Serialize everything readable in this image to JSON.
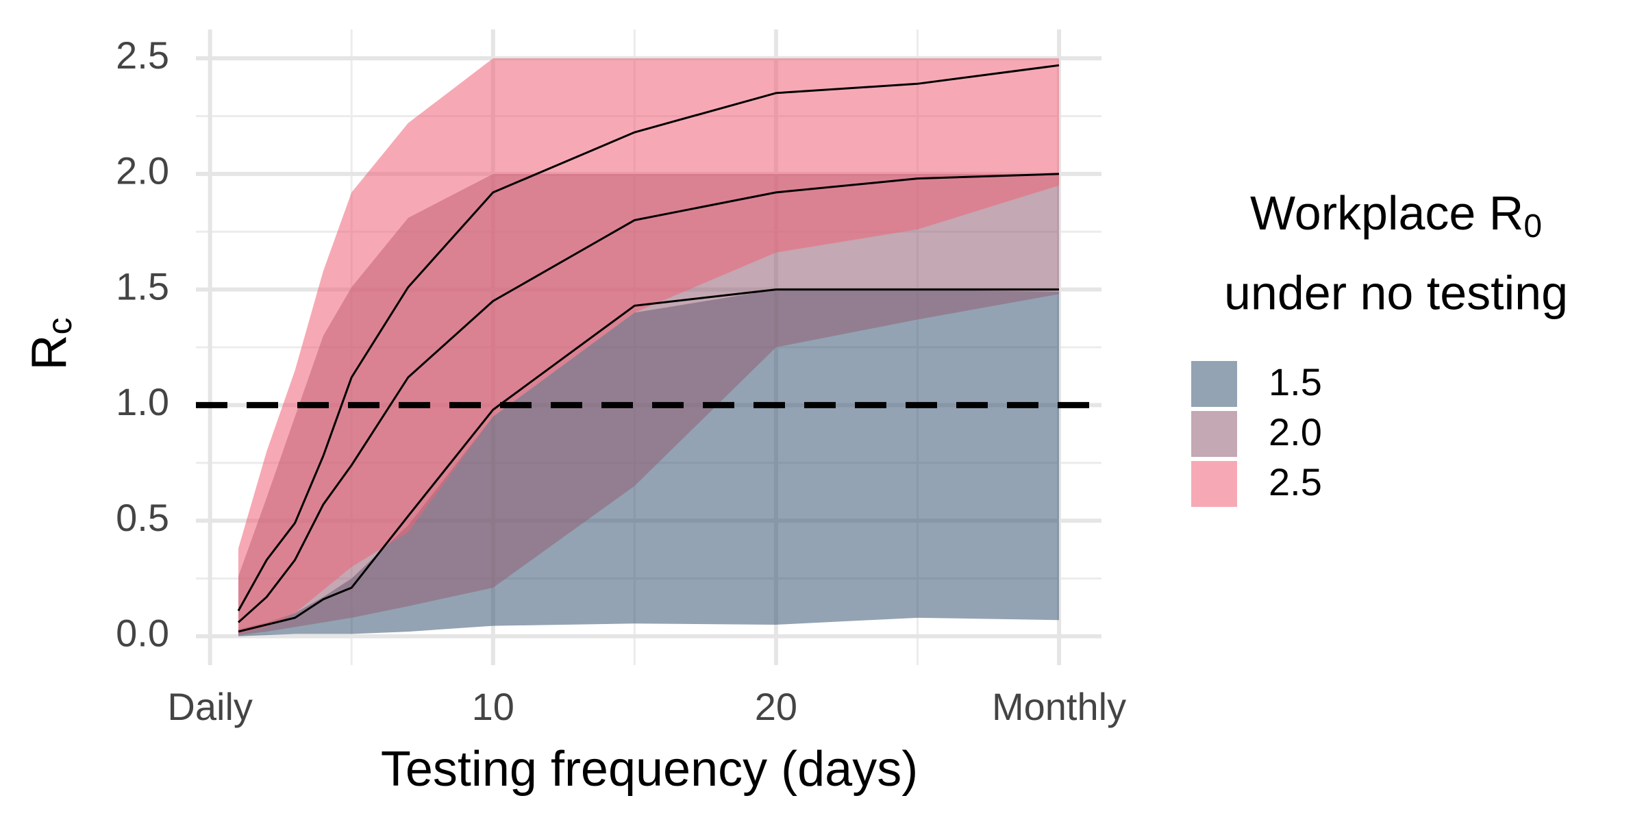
{
  "chart_data": {
    "type": "band",
    "x_title": "Testing frequency (days)",
    "y_title": {
      "text": "R",
      "subscript": "c"
    },
    "legend_title": {
      "text": "Workplace R",
      "subscript": "0",
      "line2": "under no testing"
    },
    "x": [
      1,
      2,
      3,
      4,
      5,
      7,
      10,
      15,
      20,
      25,
      30
    ],
    "series": [
      {
        "name": "1.5",
        "color": "#3a5774",
        "lower": [
          0,
          0.005,
          0.01,
          0.01,
          0.01,
          0.02,
          0.045,
          0.055,
          0.05,
          0.08,
          0.07
        ],
        "median": [
          0.02,
          0.05,
          0.08,
          0.16,
          0.21,
          0.52,
          0.98,
          1.43,
          1.5,
          1.5,
          1.5
        ],
        "upper": [
          0.03,
          0.06,
          0.1,
          0.17,
          0.25,
          0.48,
          0.95,
          1.4,
          1.5,
          1.5,
          1.49
        ]
      },
      {
        "name": "2.0",
        "color": "#936074",
        "lower": [
          0.005,
          0.02,
          0.04,
          0.06,
          0.08,
          0.13,
          0.21,
          0.65,
          1.25,
          1.37,
          1.48
        ],
        "median": [
          0.06,
          0.17,
          0.33,
          0.57,
          0.74,
          1.12,
          1.45,
          1.8,
          1.92,
          1.98,
          2.0
        ],
        "upper": [
          0.26,
          0.6,
          0.95,
          1.3,
          1.51,
          1.81,
          2.0,
          2.0,
          2.0,
          2.0,
          2.0
        ]
      },
      {
        "name": "2.5",
        "color": "#ee6276",
        "lower": [
          0.01,
          0.04,
          0.1,
          0.2,
          0.3,
          0.45,
          0.95,
          1.4,
          1.66,
          1.76,
          1.95
        ],
        "median": [
          0.11,
          0.33,
          0.49,
          0.78,
          1.12,
          1.51,
          1.92,
          2.18,
          2.35,
          2.39,
          2.47
        ],
        "upper": [
          0.38,
          0.8,
          1.15,
          1.58,
          1.92,
          2.22,
          2.5,
          2.5,
          2.5,
          2.5,
          2.5
        ]
      }
    ],
    "fill_alpha": 0.55,
    "hline": 1,
    "xlim": [
      -0.5,
      31.5
    ],
    "ylim": [
      -0.125,
      2.625
    ],
    "xticks": [
      {
        "value": 0,
        "label": "Daily"
      },
      10,
      20,
      {
        "value": 30,
        "label": "Monthly"
      }
    ],
    "yticks": [
      {
        "value": 0,
        "label": "0.0"
      },
      0.5,
      {
        "value": 1,
        "label": "1.0"
      },
      1.5,
      {
        "value": 2,
        "label": "2.0"
      },
      2.5
    ],
    "minor_xticks": [
      5,
      15,
      25
    ],
    "minor_yticks": [
      0.25,
      0.75,
      1.25,
      1.75,
      2.25
    ],
    "grid": true
  }
}
